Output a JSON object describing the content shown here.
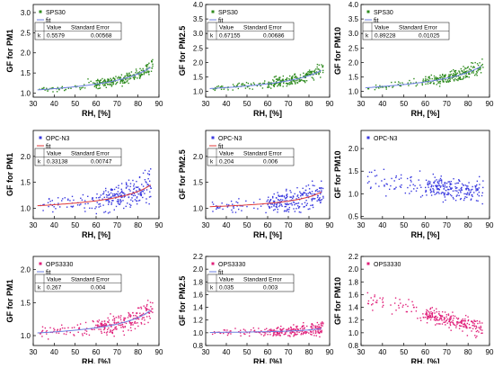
{
  "chart_data": [
    {
      "type": "scatter",
      "ylabel": "GF for PM1",
      "xlabel": "RH, [%]",
      "xlim": [
        30,
        90
      ],
      "ylim": [
        0.9,
        3.2
      ],
      "xticks": [
        "30",
        "40",
        "50",
        "60",
        "70",
        "80",
        "90"
      ],
      "yticks": [
        {
          "v": 1.0,
          "t": "1.0"
        },
        {
          "v": 1.5,
          "t": "1.5"
        },
        {
          "v": 2.0,
          "t": "2.0"
        },
        {
          "v": 2.5,
          "t": "2.5"
        },
        {
          "v": 3.0,
          "t": "3.0"
        }
      ],
      "series_name": "SPS30",
      "marker_color": "#2e8b1e",
      "fit_color": "#6b7fe0",
      "fit": {
        "k": 0.5579,
        "stderr": 0.00568
      },
      "table": {
        "h1": "Value",
        "h2": "Standard Error",
        "row_label": "k",
        "value": "0.5579",
        "error": "0.00568"
      },
      "trend": {
        "type": "fit",
        "k": 0.5579,
        "spread": 0.12
      }
    },
    {
      "type": "scatter",
      "ylabel": "GF for PM2.5",
      "xlabel": "RH, [%]",
      "xlim": [
        30,
        90
      ],
      "ylim": [
        0.8,
        4.0
      ],
      "xticks": [
        "30",
        "40",
        "50",
        "60",
        "70",
        "80",
        "90"
      ],
      "yticks": [
        {
          "v": 1.0,
          "t": "1.0"
        },
        {
          "v": 1.5,
          "t": "1.5"
        },
        {
          "v": 2.0,
          "t": "2.0"
        },
        {
          "v": 2.5,
          "t": "2.5"
        },
        {
          "v": 3.0,
          "t": "3.0"
        },
        {
          "v": 3.5,
          "t": "3.5"
        },
        {
          "v": 4.0,
          "t": "4.0"
        }
      ],
      "series_name": "SPS30",
      "marker_color": "#2e8b1e",
      "fit_color": "#6b7fe0",
      "fit": {
        "k": 0.67155,
        "stderr": 0.00686
      },
      "table": {
        "h1": "Value",
        "h2": "Standard Error",
        "row_label": "k",
        "value": "0.67155",
        "error": "0.00686"
      },
      "trend": {
        "type": "fit",
        "k": 0.67155,
        "spread": 0.15
      }
    },
    {
      "type": "scatter",
      "ylabel": "GF for PM10",
      "xlabel": "RH, [%]",
      "xlim": [
        30,
        90
      ],
      "ylim": [
        0.8,
        4.0
      ],
      "xticks": [
        "30",
        "40",
        "50",
        "60",
        "70",
        "80",
        "90"
      ],
      "yticks": [
        {
          "v": 1.0,
          "t": "1.0"
        },
        {
          "v": 1.5,
          "t": "1.5"
        },
        {
          "v": 2.0,
          "t": "2.0"
        },
        {
          "v": 2.5,
          "t": "2.5"
        },
        {
          "v": 3.0,
          "t": "3.0"
        },
        {
          "v": 3.5,
          "t": "3.5"
        },
        {
          "v": 4.0,
          "t": "4.0"
        }
      ],
      "series_name": "SPS30",
      "marker_color": "#2e8b1e",
      "fit_color": "#6b7fe0",
      "fit": {
        "k": 0.89228,
        "stderr": 0.01025
      },
      "table": {
        "h1": "Value",
        "h2": "Standard Error",
        "row_label": "k",
        "value": "0.89228",
        "error": "0.01025"
      },
      "trend": {
        "type": "fit",
        "k": 0.89228,
        "spread": 0.17
      }
    },
    {
      "type": "scatter",
      "ylabel": "GF for PM1",
      "xlabel": "RH, [%]",
      "xlim": [
        30,
        90
      ],
      "ylim": [
        0.8,
        2.5
      ],
      "xticks": [
        "30",
        "40",
        "50",
        "60",
        "70",
        "80",
        "90"
      ],
      "yticks": [
        {
          "v": 1.0,
          "t": "1.0"
        },
        {
          "v": 1.5,
          "t": "1.5"
        },
        {
          "v": 2.0,
          "t": "2.0"
        }
      ],
      "series_name": "OPC-N3",
      "marker_color": "#3a3adf",
      "fit_color": "#e03a3a",
      "fit": {
        "k": 0.33138,
        "stderr": 0.00747
      },
      "table": {
        "h1": "Value",
        "h2": "Standard Error",
        "row_label": "k",
        "value": "0.33138",
        "error": "0.00747"
      },
      "trend": {
        "type": "fit",
        "k": 0.33138,
        "spread": 0.2
      }
    },
    {
      "type": "scatter",
      "ylabel": "GF for PM2.5",
      "xlabel": "RH, [%]",
      "xlim": [
        30,
        90
      ],
      "ylim": [
        0.8,
        2.5
      ],
      "xticks": [
        "30",
        "40",
        "50",
        "60",
        "70",
        "80",
        "90"
      ],
      "yticks": [
        {
          "v": 1.0,
          "t": "1.0"
        },
        {
          "v": 1.5,
          "t": "1.5"
        },
        {
          "v": 2.0,
          "t": "2.0"
        }
      ],
      "series_name": "OPC-N3",
      "marker_color": "#3a3adf",
      "fit_color": "#e03a3a",
      "fit": {
        "k": 0.204,
        "stderr": 0.006
      },
      "table": {
        "h1": "Value",
        "h2": "Standard Error",
        "row_label": "k",
        "value": "0.204",
        "error": "0.006"
      },
      "trend": {
        "type": "fit",
        "k": 0.204,
        "spread": 0.18
      }
    },
    {
      "type": "scatter",
      "ylabel": "GF for PM10",
      "xlabel": "RH, [%]",
      "xlim": [
        30,
        90
      ],
      "ylim": [
        0.45,
        2.4
      ],
      "xticks": [
        "30",
        "40",
        "50",
        "60",
        "70",
        "80",
        "90"
      ],
      "yticks": [
        {
          "v": 0.5,
          "t": "0.5"
        },
        {
          "v": 1.0,
          "t": "1.0"
        },
        {
          "v": 1.5,
          "t": "1.5"
        },
        {
          "v": 2.0,
          "t": "2.0"
        }
      ],
      "series_name": "OPC-N3",
      "marker_color": "#3a3adf",
      "fit_color": null,
      "fit": null,
      "table": null,
      "trend": {
        "type": "flat",
        "base": 1.18,
        "slope": -0.004,
        "spread": 0.25
      }
    },
    {
      "type": "scatter",
      "ylabel": "GF for PM1",
      "xlabel": "RH, [%]",
      "xlim": [
        30,
        90
      ],
      "ylim": [
        0.85,
        2.2
      ],
      "xticks": [
        "30",
        "40",
        "50",
        "60",
        "70",
        "80",
        "90"
      ],
      "yticks": [
        {
          "v": 1.0,
          "t": "1.0"
        },
        {
          "v": 1.5,
          "t": "1.5"
        },
        {
          "v": 2.0,
          "t": "2.0"
        }
      ],
      "series_name": "OPS3330",
      "marker_color": "#e0207a",
      "fit_color": "#6b7fe0",
      "fit": {
        "k": 0.267,
        "stderr": 0.004
      },
      "table": {
        "h1": "Value",
        "h2": "Standard Error",
        "row_label": "k",
        "value": "0.267",
        "error": "0.004"
      },
      "trend": {
        "type": "fit",
        "k": 0.267,
        "spread": 0.12
      }
    },
    {
      "type": "scatter",
      "ylabel": "GF for PM2.5",
      "xlabel": "RH, [%]",
      "xlim": [
        30,
        90
      ],
      "ylim": [
        0.8,
        2.2
      ],
      "xticks": [
        "30",
        "40",
        "50",
        "60",
        "70",
        "80",
        "90"
      ],
      "yticks": [
        {
          "v": 0.8,
          "t": "0.8"
        },
        {
          "v": 1.0,
          "t": "1.0"
        },
        {
          "v": 1.2,
          "t": "1.2"
        },
        {
          "v": 1.4,
          "t": "1.4"
        },
        {
          "v": 1.6,
          "t": "1.6"
        },
        {
          "v": 1.8,
          "t": "1.8"
        },
        {
          "v": 2.0,
          "t": "2.0"
        },
        {
          "v": 2.2,
          "t": "2.2"
        }
      ],
      "series_name": "OPS3330",
      "marker_color": "#e0207a",
      "fit_color": "#6b7fe0",
      "fit": {
        "k": 0.035,
        "stderr": 0.003
      },
      "table": {
        "h1": "Value",
        "h2": "Standard Error",
        "row_label": "k",
        "value": "0.035",
        "error": "0.003"
      },
      "trend": {
        "type": "fit",
        "k": 0.035,
        "spread": 0.07
      }
    },
    {
      "type": "scatter",
      "ylabel": "GF for PM10",
      "xlabel": "RH, [%]",
      "xlim": [
        30,
        90
      ],
      "ylim": [
        0.8,
        2.2
      ],
      "xticks": [
        "30",
        "40",
        "50",
        "60",
        "70",
        "80",
        "90"
      ],
      "yticks": [
        {
          "v": 0.8,
          "t": "0.8"
        },
        {
          "v": 1.0,
          "t": "1.0"
        },
        {
          "v": 1.2,
          "t": "1.2"
        },
        {
          "v": 1.4,
          "t": "1.4"
        },
        {
          "v": 1.6,
          "t": "1.6"
        },
        {
          "v": 1.8,
          "t": "1.8"
        },
        {
          "v": 2.0,
          "t": "2.0"
        },
        {
          "v": 2.2,
          "t": "2.2"
        }
      ],
      "series_name": "OPS3330",
      "marker_color": "#e0207a",
      "fit_color": null,
      "fit": null,
      "table": null,
      "trend": {
        "type": "flat",
        "base": 1.35,
        "slope": -0.009,
        "spread": 0.13
      }
    }
  ]
}
